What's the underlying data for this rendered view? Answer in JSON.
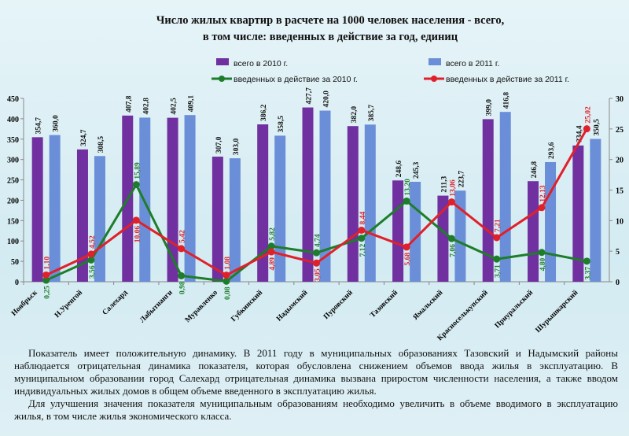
{
  "title_line1": "Число жилых квартир в расчете на 1000 человек населения - всего,",
  "title_line2": "в том числе: введенных в действие за год, единиц",
  "chart_data": {
    "type": "bar",
    "categories": [
      "Ноябрьск",
      "Н.Уренгой",
      "Салехард",
      "Лабытнанги",
      "Муравленко",
      "Губкинский",
      "Надымский",
      "Пуровский",
      "Тазовский",
      "Ямальский",
      "Красноселькупский",
      "Приуральский",
      "Шурышкарский"
    ],
    "series": [
      {
        "name": "всего в 2010 г.",
        "type": "bar",
        "axis": "left",
        "color": "#7030a0",
        "values": [
          354.7,
          324.7,
          407.8,
          402.5,
          307.0,
          386.2,
          427.7,
          382.0,
          248.6,
          211.3,
          399.0,
          246.8,
          334.4
        ],
        "labels": [
          "354,7",
          "324,7",
          "407,8",
          "402,5",
          "307,0",
          "386,2",
          "427,7",
          "382,0",
          "248,6",
          "211,3",
          "399,0",
          "246,8",
          "334,4"
        ]
      },
      {
        "name": "всего в 2011 г.",
        "type": "bar",
        "axis": "left",
        "color": "#6a8fd8",
        "values": [
          360.0,
          308.5,
          402.8,
          409.1,
          303.0,
          358.5,
          420.0,
          385.7,
          245.3,
          223.7,
          416.8,
          293.6,
          350.5
        ],
        "labels": [
          "360,0",
          "308,5",
          "402,8",
          "409,1",
          "303,0",
          "358,5",
          "420,0",
          "385,7",
          "245,3",
          "223,7",
          "416,8",
          "293,6",
          "350,5"
        ]
      },
      {
        "name": "введенных в действие за 2010 г.",
        "type": "line",
        "axis": "right",
        "color": "#1e7d2a",
        "values": [
          0.25,
          3.56,
          15.89,
          0.98,
          0.08,
          5.82,
          4.74,
          7.12,
          13.2,
          7.06,
          3.71,
          4.8,
          3.37
        ],
        "labels": [
          "0,25",
          "3,56",
          "15,89",
          "0,98",
          "0,08",
          "5,82",
          "4,74",
          "7,12",
          "13,20",
          "7,06",
          "3,71",
          "4,80",
          "3,37"
        ]
      },
      {
        "name": "введенных в действие за 2011 г.",
        "type": "line",
        "axis": "right",
        "color": "#e0202a",
        "values": [
          1.1,
          4.52,
          10.06,
          5.42,
          1.08,
          4.89,
          3.05,
          8.44,
          5.68,
          13.06,
          7.21,
          12.13,
          25.02
        ],
        "labels": [
          "1,10",
          "4,52",
          "10,06",
          "5,42",
          "1,08",
          "4,89",
          "3,05",
          "8,44",
          "5,68",
          "13,06",
          "7,21",
          "12,13",
          "25,02"
        ]
      }
    ],
    "ylim_left": [
      0,
      450
    ],
    "yticks_left": [
      "0",
      "50",
      "100",
      "150",
      "200",
      "250",
      "300",
      "350",
      "400",
      "450"
    ],
    "ylim_right": [
      0,
      30
    ],
    "yticks_right": [
      "0",
      "5",
      "10",
      "15",
      "20",
      "25",
      "30"
    ],
    "grid": false,
    "legend": "top"
  },
  "paragraph1": "Показатель имеет положительную динамику. В 2011 году в муниципальных образованиях Тазовский и Надымский районы наблюдается отрицательная динамика показателя, которая обусловлена снижением объемов ввода жилья в эксплуатацию. В муниципальном образовании город Салехард отрицательная динамика вызвана приростом численности населения, а также вводом индивидуальных жилых домов в общем объеме введенного в эксплуатацию жилья.",
  "paragraph2": "Для улучшения значения показателя муниципальным образованиям необходимо увеличить в объеме вводимого в эксплуатацию жилья, в том числе жилья экономического класса."
}
